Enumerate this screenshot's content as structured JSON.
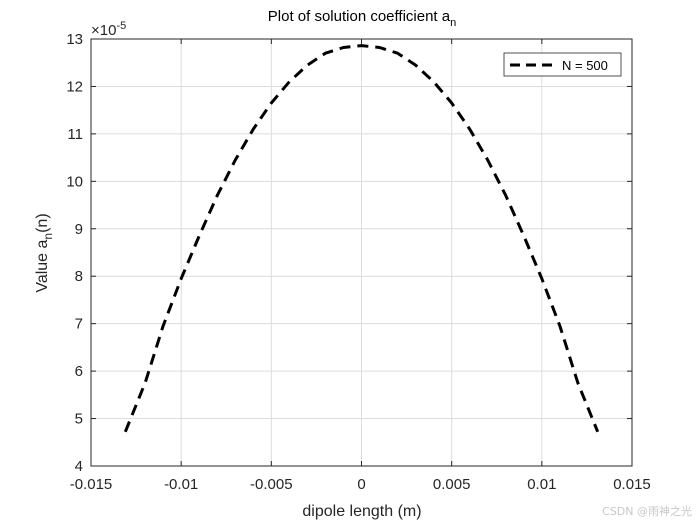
{
  "chart_data": {
    "type": "line",
    "title": "Plot of solution coefficient a",
    "title_subscript": "n",
    "xlabel": "dipole length (m)",
    "ylabel": "Value a",
    "ylabel_subscript": "n",
    "ylabel_suffix": "(n)",
    "exponent_prefix": "×10",
    "exponent_power": "-5",
    "xlim": [
      -0.015,
      0.015
    ],
    "ylim": [
      4,
      13
    ],
    "xticks": [
      -0.015,
      -0.01,
      -0.005,
      0,
      0.005,
      0.01,
      0.015
    ],
    "xtick_labels": [
      "-0.015",
      "-0.01",
      "-0.005",
      "0",
      "0.005",
      "0.01",
      "0.015"
    ],
    "yticks": [
      4,
      5,
      6,
      7,
      8,
      9,
      10,
      11,
      12,
      13
    ],
    "ytick_labels": [
      "4",
      "5",
      "6",
      "7",
      "8",
      "9",
      "10",
      "11",
      "12",
      "13"
    ],
    "grid": true,
    "legend_position": "top-right",
    "series": [
      {
        "name": "N = 500",
        "color": "#000000",
        "line_style": "dashed",
        "x": [
          -0.0131,
          -0.012,
          -0.011,
          -0.01,
          -0.009,
          -0.008,
          -0.007,
          -0.006,
          -0.005,
          -0.004,
          -0.003,
          -0.002,
          -0.001,
          0,
          0.001,
          0.002,
          0.003,
          0.004,
          0.005,
          0.006,
          0.007,
          0.008,
          0.009,
          0.01,
          0.011,
          0.012,
          0.0131
        ],
        "y": [
          4.72,
          5.75,
          6.95,
          7.95,
          8.85,
          9.7,
          10.45,
          11.1,
          11.65,
          12.1,
          12.45,
          12.7,
          12.82,
          12.86,
          12.82,
          12.7,
          12.45,
          12.1,
          11.65,
          11.1,
          10.45,
          9.7,
          8.85,
          7.95,
          6.95,
          5.75,
          4.72
        ]
      }
    ]
  },
  "watermark": "CSDN @雨神之光"
}
